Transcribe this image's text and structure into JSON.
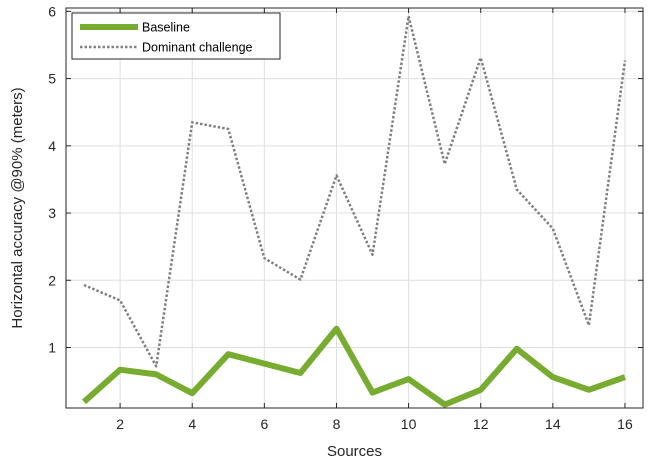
{
  "chart_data": {
    "type": "line",
    "xlabel": "Sources",
    "ylabel": "Horizontal accuracy @90% (meters)",
    "xlim": [
      0.5,
      16.5
    ],
    "ylim": [
      0.1,
      6.05
    ],
    "xticks": [
      2,
      4,
      6,
      8,
      10,
      12,
      14,
      16
    ],
    "yticks": [
      1,
      2,
      3,
      4,
      5,
      6
    ],
    "grid": true,
    "legend_position": "top-left",
    "x": [
      1,
      2,
      3,
      4,
      5,
      6,
      7,
      8,
      9,
      10,
      11,
      12,
      13,
      14,
      15,
      16
    ],
    "series": [
      {
        "name": "Baseline",
        "color": "#77ac30",
        "style": "solid",
        "values": [
          0.19,
          0.67,
          0.6,
          0.32,
          0.9,
          0.76,
          0.62,
          1.28,
          0.33,
          0.53,
          0.15,
          0.37,
          0.98,
          0.56,
          0.37,
          0.56
        ]
      },
      {
        "name": "Dominant challenge",
        "color": "#808080",
        "style": "dotted",
        "values": [
          1.93,
          1.7,
          0.72,
          4.35,
          4.25,
          2.33,
          2.01,
          3.56,
          2.38,
          5.93,
          3.73,
          5.31,
          3.35,
          2.77,
          1.33,
          5.27
        ]
      }
    ]
  }
}
